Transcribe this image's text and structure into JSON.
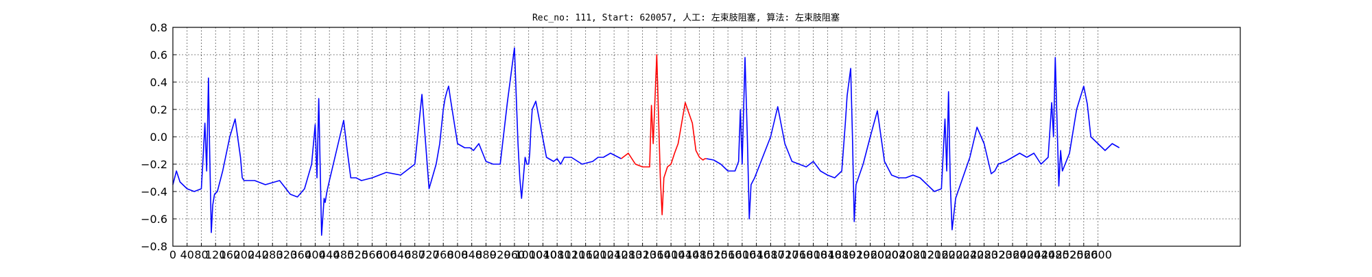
{
  "chart_data": {
    "type": "line",
    "title": "Rec_no: 111, Start: 620057, 人工: 左束肢阻塞, 算法: 左束肢阻塞",
    "xlabel": "",
    "ylabel": "",
    "xlim": [
      0,
      3000
    ],
    "ylim": [
      -0.8,
      0.8
    ],
    "x_ticks": [
      0,
      40,
      80,
      120,
      160,
      200,
      240,
      280,
      320,
      360,
      400,
      440,
      480,
      520,
      560,
      600,
      640,
      680,
      720,
      760,
      800,
      840,
      880,
      920,
      960,
      1000,
      1040,
      1080,
      1120,
      1160,
      1200,
      1240,
      1280,
      1320,
      1360,
      1400,
      1440,
      1480,
      1520,
      1560,
      1600,
      1640,
      1680,
      1720,
      1760,
      1800,
      1840,
      1880,
      1920,
      1960,
      2000,
      2040,
      2080,
      2120,
      2160,
      2200,
      2240,
      2280,
      2320,
      2360,
      2400,
      2440,
      2480,
      2520,
      2560,
      2600
    ],
    "y_ticks": [
      -0.8,
      -0.6,
      -0.4,
      -0.2,
      0.0,
      0.2,
      0.4,
      0.6,
      0.8
    ],
    "grid": true,
    "colors": {
      "signal": "#0000ff",
      "highlight": "#ff0000"
    },
    "series": [
      {
        "color": "#0000ff",
        "x": [
          0,
          10,
          20,
          40,
          60,
          80,
          85,
          90,
          95,
          100,
          103,
          108,
          112,
          117,
          125,
          140,
          160,
          175,
          190,
          195,
          200,
          215,
          230,
          260,
          300,
          330,
          350,
          370,
          390,
          400,
          405,
          410,
          418,
          425,
          428,
          433,
          440,
          460,
          480,
          490,
          500,
          515,
          530,
          560,
          600,
          640,
          680,
          700,
          720,
          740,
          750,
          760,
          765,
          770,
          775,
          780,
          800,
          820,
          835,
          845,
          860,
          880,
          900,
          920,
          940,
          960,
          970,
          975,
          980,
          990,
          995,
          1000,
          1003,
          1006,
          1010,
          1020,
          1050,
          1070,
          1080,
          1090,
          1100,
          1120,
          1150,
          1180,
          1195,
          1210,
          1230,
          1260
        ],
        "y": [
          -0.35,
          -0.25,
          -0.33,
          -0.38,
          -0.4,
          -0.38,
          -0.15,
          0.1,
          -0.25,
          0.43,
          -0.05,
          -0.7,
          -0.5,
          -0.42,
          -0.4,
          -0.25,
          0.0,
          0.13,
          -0.15,
          -0.3,
          -0.32,
          -0.32,
          -0.32,
          -0.35,
          -0.32,
          -0.42,
          -0.44,
          -0.38,
          -0.2,
          0.09,
          -0.3,
          0.28,
          -0.72,
          -0.45,
          -0.48,
          -0.4,
          -0.32,
          -0.1,
          0.12,
          -0.1,
          -0.3,
          -0.3,
          -0.32,
          -0.3,
          -0.26,
          -0.28,
          -0.2,
          0.31,
          -0.38,
          -0.2,
          -0.05,
          0.2,
          0.28,
          0.33,
          0.37,
          0.28,
          -0.05,
          -0.08,
          -0.08,
          -0.1,
          -0.05,
          -0.18,
          -0.2,
          -0.2,
          0.25,
          0.65,
          -0.05,
          -0.3,
          -0.45,
          -0.15,
          -0.2,
          -0.2,
          -0.12,
          0.05,
          0.2,
          0.26,
          -0.15,
          -0.18,
          -0.16,
          -0.2,
          -0.15,
          -0.15,
          -0.2,
          -0.18,
          -0.15,
          -0.15,
          -0.12,
          -0.16
        ]
      },
      {
        "color": "#ff0000",
        "x": [
          1260,
          1280,
          1300,
          1320,
          1340,
          1345,
          1350,
          1360,
          1370,
          1375,
          1380,
          1390,
          1400,
          1410,
          1420,
          1430,
          1440,
          1460,
          1470,
          1480,
          1490,
          1495,
          1500
        ],
        "y": [
          -0.16,
          -0.12,
          -0.2,
          -0.22,
          -0.22,
          0.23,
          -0.05,
          0.6,
          -0.3,
          -0.57,
          -0.3,
          -0.22,
          -0.2,
          -0.12,
          -0.05,
          0.1,
          0.25,
          0.1,
          -0.1,
          -0.15,
          -0.17,
          -0.16,
          -0.16
        ]
      },
      {
        "color": "#0000ff",
        "x": [
          1500,
          1520,
          1540,
          1560,
          1580,
          1590,
          1595,
          1600,
          1608,
          1615,
          1620,
          1625,
          1635,
          1650,
          1680,
          1700,
          1720,
          1740,
          1760,
          1780,
          1800,
          1820,
          1840,
          1860,
          1880,
          1890,
          1895,
          1905,
          1910,
          1915,
          1920,
          1940,
          1960,
          1980,
          2000,
          2020,
          2040,
          2060,
          2080,
          2100,
          2140,
          2160,
          2170,
          2175,
          2180,
          2185,
          2190,
          2200,
          2220,
          2240,
          2260,
          2280,
          2300,
          2310,
          2320,
          2340,
          2360,
          2380,
          2400,
          2420,
          2440,
          2460,
          2470,
          2475,
          2480,
          2490,
          2495,
          2500,
          2520,
          2540,
          2560,
          2570,
          2580,
          2600,
          2620,
          2640,
          2660
        ],
        "y": [
          -0.16,
          -0.17,
          -0.2,
          -0.25,
          -0.25,
          -0.18,
          0.2,
          -0.2,
          0.58,
          -0.05,
          -0.6,
          -0.35,
          -0.3,
          -0.2,
          0.0,
          0.22,
          -0.05,
          -0.18,
          -0.2,
          -0.22,
          -0.18,
          -0.25,
          -0.28,
          -0.3,
          -0.25,
          0.1,
          0.3,
          0.5,
          0.0,
          -0.62,
          -0.35,
          -0.2,
          0.0,
          0.19,
          -0.18,
          -0.28,
          -0.3,
          -0.3,
          -0.28,
          -0.3,
          -0.4,
          -0.38,
          0.13,
          -0.25,
          0.33,
          -0.35,
          -0.68,
          -0.45,
          -0.3,
          -0.15,
          0.07,
          -0.05,
          -0.27,
          -0.25,
          -0.2,
          -0.18,
          -0.15,
          -0.12,
          -0.15,
          -0.12,
          -0.2,
          -0.15,
          0.25,
          0.0,
          0.58,
          -0.36,
          -0.1,
          -0.25,
          -0.12,
          0.2,
          0.37,
          0.24,
          0.0,
          -0.05,
          -0.1,
          -0.05,
          -0.08
        ]
      }
    ]
  }
}
